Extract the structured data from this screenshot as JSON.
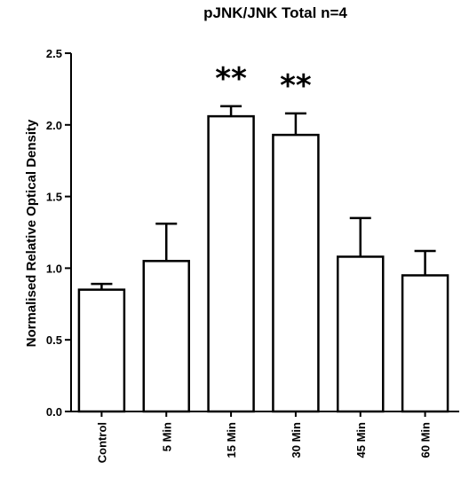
{
  "chart_data": {
    "type": "bar",
    "title": "pJNK/JNK Total n=4",
    "ylabel": "Normalised Relative Optical Density",
    "xlabel": "",
    "ylim": [
      0,
      2.5
    ],
    "yticks": [
      "0.0",
      "0.5",
      "1.0",
      "1.5",
      "2.0",
      "2.5"
    ],
    "categories": [
      "Control",
      "5 Min",
      "15 Min",
      "30 Min",
      "45 Min",
      "60 Min"
    ],
    "values": [
      0.85,
      1.05,
      2.06,
      1.93,
      1.08,
      0.95
    ],
    "errors": [
      0.04,
      0.26,
      0.07,
      0.15,
      0.27,
      0.17
    ],
    "annotations": [
      "",
      "",
      "**",
      "**",
      "",
      ""
    ],
    "bar_fill": "#ffffff",
    "bar_stroke": "#000000",
    "grid": false,
    "legend": "none"
  }
}
